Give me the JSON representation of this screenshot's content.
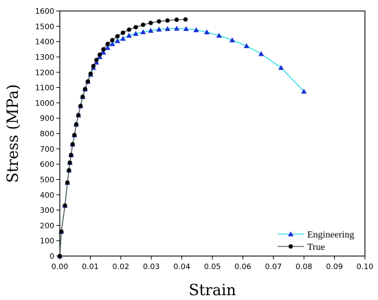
{
  "chart_data": {
    "type": "scatter",
    "xlabel": "Strain",
    "ylabel": "Stress (MPa)",
    "xlim": [
      0.0,
      0.1
    ],
    "ylim": [
      0,
      1600
    ],
    "x_ticks": [
      "0.00",
      "0.01",
      "0.02",
      "0.03",
      "0.04",
      "0.05",
      "0.06",
      "0.07",
      "0.08",
      "0.09",
      "0.10"
    ],
    "y_ticks": [
      "0",
      "100",
      "200",
      "300",
      "400",
      "500",
      "600",
      "700",
      "800",
      "900",
      "1000",
      "1100",
      "1200",
      "1300",
      "1400",
      "1500",
      "1600"
    ],
    "grid": false,
    "legend_position": "bottom-right",
    "series": [
      {
        "name": "Engineering",
        "line_color": "#22dde8",
        "marker": "triangle",
        "marker_color": "#1a2fd6",
        "points": [
          [
            0.0,
            0
          ],
          [
            0.0005,
            160
          ],
          [
            0.0017,
            330
          ],
          [
            0.0025,
            480
          ],
          [
            0.003,
            560
          ],
          [
            0.0033,
            610
          ],
          [
            0.0037,
            660
          ],
          [
            0.0042,
            730
          ],
          [
            0.0048,
            790
          ],
          [
            0.0054,
            860
          ],
          [
            0.0061,
            920
          ],
          [
            0.0068,
            980
          ],
          [
            0.0075,
            1040
          ],
          [
            0.0083,
            1090
          ],
          [
            0.0092,
            1140
          ],
          [
            0.0101,
            1185
          ],
          [
            0.011,
            1230
          ],
          [
            0.012,
            1265
          ],
          [
            0.0131,
            1300
          ],
          [
            0.0143,
            1330
          ],
          [
            0.0157,
            1360
          ],
          [
            0.0172,
            1385
          ],
          [
            0.0189,
            1405
          ],
          [
            0.0207,
            1420
          ],
          [
            0.0227,
            1440
          ],
          [
            0.0249,
            1452
          ],
          [
            0.0273,
            1463
          ],
          [
            0.0298,
            1472
          ],
          [
            0.0325,
            1480
          ],
          [
            0.0353,
            1484
          ],
          [
            0.0383,
            1486
          ],
          [
            0.0414,
            1484
          ],
          [
            0.0447,
            1476
          ],
          [
            0.0482,
            1462
          ],
          [
            0.0522,
            1440
          ],
          [
            0.0565,
            1410
          ],
          [
            0.0612,
            1372
          ],
          [
            0.066,
            1320
          ],
          [
            0.0725,
            1230
          ],
          [
            0.08,
            1075
          ]
        ]
      },
      {
        "name": "True",
        "line_color": "#555555",
        "marker": "circle",
        "marker_color": "#000000",
        "points": [
          [
            0.0,
            0
          ],
          [
            0.0005,
            160
          ],
          [
            0.0017,
            330
          ],
          [
            0.0025,
            480
          ],
          [
            0.003,
            560
          ],
          [
            0.0033,
            610
          ],
          [
            0.0037,
            660
          ],
          [
            0.0042,
            730
          ],
          [
            0.0048,
            790
          ],
          [
            0.0054,
            860
          ],
          [
            0.0061,
            920
          ],
          [
            0.0068,
            980
          ],
          [
            0.0075,
            1040
          ],
          [
            0.0083,
            1090
          ],
          [
            0.0092,
            1140
          ],
          [
            0.0101,
            1190
          ],
          [
            0.011,
            1240
          ],
          [
            0.012,
            1280
          ],
          [
            0.0131,
            1315
          ],
          [
            0.0143,
            1350
          ],
          [
            0.0157,
            1385
          ],
          [
            0.0172,
            1410
          ],
          [
            0.0189,
            1435
          ],
          [
            0.0207,
            1458
          ],
          [
            0.0227,
            1478
          ],
          [
            0.0249,
            1494
          ],
          [
            0.0273,
            1510
          ],
          [
            0.0298,
            1522
          ],
          [
            0.0325,
            1532
          ],
          [
            0.0353,
            1538
          ],
          [
            0.0383,
            1543
          ],
          [
            0.0412,
            1545
          ]
        ]
      }
    ]
  }
}
